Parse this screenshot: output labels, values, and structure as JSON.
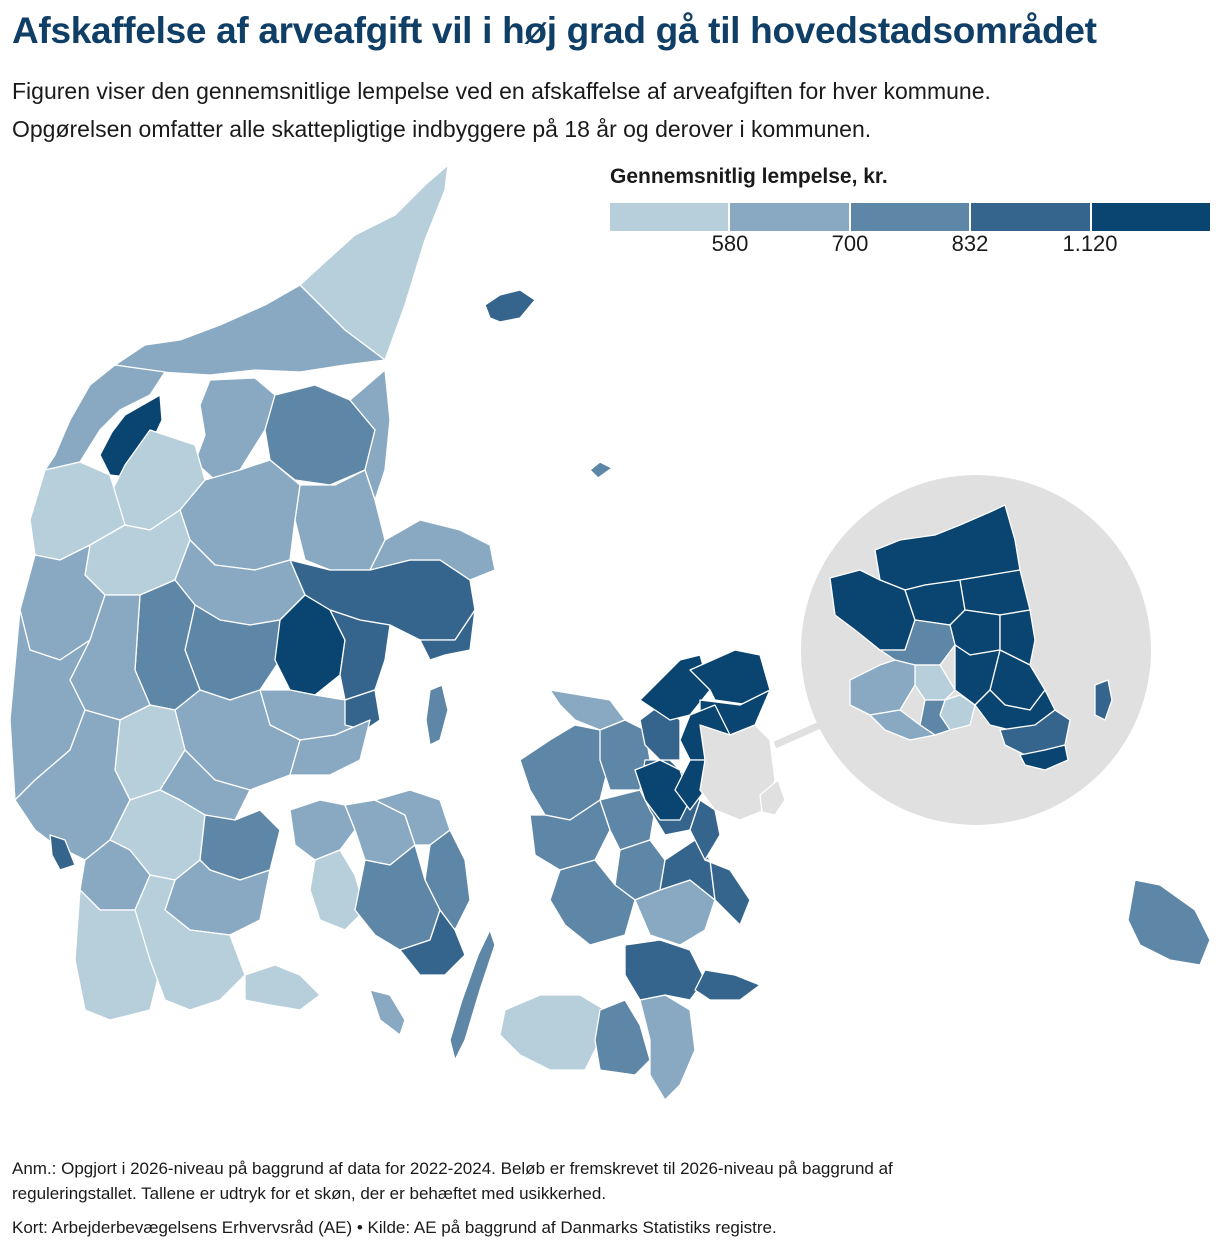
{
  "title": "Afskaffelse af arveafgift vil i høj grad gå til hovedstadsområdet",
  "subtitle_line1": "Figuren viser den gennemsnitlige lempelse ved en afskaffelse af arveafgiften for hver kommune.",
  "subtitle_line2": "Opgørelsen omfatter alle skattepligtige indbyggere på 18 år og derover i kommunen.",
  "legend": {
    "title": "Gennemsnitlig lempelse, kr.",
    "ticks": [
      "580",
      "700",
      "832",
      "1.120"
    ],
    "colors": [
      "#b7cedb",
      "#88a9c1",
      "#5e86a6",
      "#35658d",
      "#0a4470"
    ]
  },
  "map_colors": {
    "sea": "#ffffff",
    "inset_circle": "#e0e0e0",
    "unshaded_region": "#e0e0e0",
    "border": "#ffffff"
  },
  "note_line1": "Anm.: Opgjort i 2026-niveau på baggrund af data for 2022-2024. Beløb er fremskrevet til 2026-niveau på baggrund af",
  "note_line2": "reguleringstallet. Tallene er udtryk for et skøn, der er behæftet med usikkerhed.",
  "source": "Kort: Arbejderbevægelsens Erhvervsråd (AE) • Kilde: AE på baggrund af Danmarks Statistiks registre."
}
